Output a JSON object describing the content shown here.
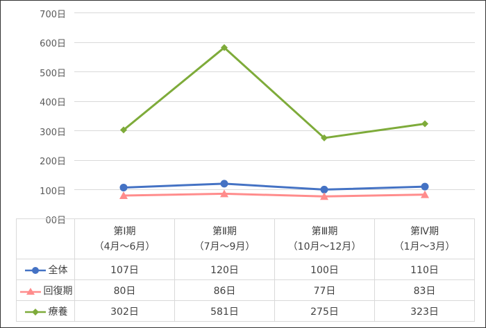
{
  "chart_data": {
    "type": "line",
    "title": "",
    "xlabel": "",
    "ylabel": "",
    "ylim": [
      0,
      700
    ],
    "yticks": [
      "00日",
      "100日",
      "200日",
      "300日",
      "400日",
      "500日",
      "600日",
      "700日"
    ],
    "grid": true,
    "legend_position": "data-table",
    "categories": [
      "第Ⅰ期（4月～6月）",
      "第Ⅱ期（7月～9月）",
      "第Ⅲ期（10月～12月）",
      "第Ⅳ期（1月～3月）"
    ],
    "series": [
      {
        "name": "全体",
        "color": "#4472c4",
        "marker": "circle",
        "values": [
          107,
          120,
          100,
          110
        ]
      },
      {
        "name": "回復期",
        "color": "#ff8c8c",
        "marker": "triangle",
        "values": [
          80,
          86,
          77,
          83
        ]
      },
      {
        "name": "療養",
        "color": "#7eab3a",
        "marker": "diamond",
        "values": [
          302,
          581,
          275,
          323
        ]
      }
    ]
  },
  "axis": {
    "y": [
      "700日",
      "600日",
      "500日",
      "400日",
      "300日",
      "200日",
      "100日",
      "00日"
    ]
  },
  "table": {
    "headers": [
      {
        "line1": "第Ⅰ期",
        "line2": "（4月～6月）"
      },
      {
        "line1": "第Ⅱ期",
        "line2": "（7月～9月）"
      },
      {
        "line1": "第Ⅲ期",
        "line2": "（10月～12月）"
      },
      {
        "line1": "第Ⅳ期",
        "line2": "（1月～3月）"
      }
    ],
    "rows": [
      {
        "label": "全体",
        "cells": [
          "107日",
          "120日",
          "100日",
          "110日"
        ]
      },
      {
        "label": "回復期",
        "cells": [
          "80日",
          "86日",
          "77日",
          "83日"
        ]
      },
      {
        "label": "療養",
        "cells": [
          "302日",
          "581日",
          "275日",
          "323日"
        ]
      }
    ]
  }
}
